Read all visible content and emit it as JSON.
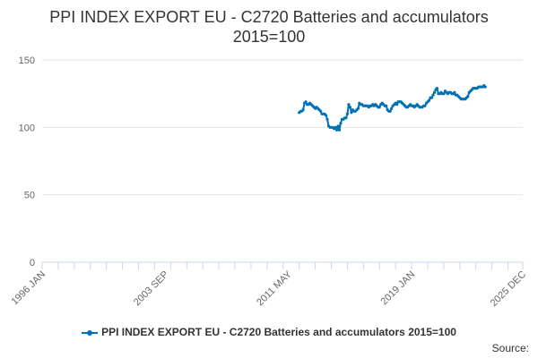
{
  "chart_data": {
    "type": "line",
    "title": "PPI INDEX EXPORT EU - C2720 Batteries and accumulators 2015=100",
    "title_lines": [
      "PPI INDEX EXPORT EU - C2720 Batteries and accumulators",
      "2015=100"
    ],
    "xlabel": "",
    "ylabel": "",
    "ylim": [
      0,
      150
    ],
    "yticks": [
      0,
      50,
      100,
      150
    ],
    "xlim": [
      "1996-01",
      "2025-12"
    ],
    "xticks": [
      "1996 JAN",
      "2003 SEP",
      "2011 MAY",
      "2019 JAN",
      "2025 DEC"
    ],
    "grid": true,
    "legend_position": "bottom",
    "series": [
      {
        "name": "PPI INDEX EXPORT EU - C2720 Batteries and accumulators 2015=100",
        "color": "#0071b5",
        "points": [
          [
            "2012-01",
            111
          ],
          [
            "2012-02",
            112
          ],
          [
            "2012-03",
            112
          ],
          [
            "2012-04",
            113
          ],
          [
            "2012-05",
            118
          ],
          [
            "2012-06",
            119
          ],
          [
            "2012-07",
            117
          ],
          [
            "2012-08",
            117
          ],
          [
            "2012-09",
            118
          ],
          [
            "2012-10",
            117
          ],
          [
            "2012-11",
            116
          ],
          [
            "2012-12",
            115
          ],
          [
            "2013-01",
            114
          ],
          [
            "2013-02",
            115
          ],
          [
            "2013-03",
            114
          ],
          [
            "2013-04",
            113
          ],
          [
            "2013-05",
            112
          ],
          [
            "2013-06",
            110
          ],
          [
            "2013-07",
            110
          ],
          [
            "2013-08",
            110
          ],
          [
            "2013-09",
            109
          ],
          [
            "2013-10",
            106
          ],
          [
            "2013-11",
            101
          ],
          [
            "2013-12",
            100
          ],
          [
            "2014-01",
            100
          ],
          [
            "2014-02",
            100
          ],
          [
            "2014-03",
            99
          ],
          [
            "2014-04",
            100
          ],
          [
            "2014-05",
            98
          ],
          [
            "2014-06",
            101
          ],
          [
            "2014-07",
            98
          ],
          [
            "2014-08",
            103
          ],
          [
            "2014-09",
            106
          ],
          [
            "2014-10",
            106
          ],
          [
            "2014-11",
            107
          ],
          [
            "2014-12",
            107
          ],
          [
            "2015-01",
            110
          ],
          [
            "2015-02",
            117
          ],
          [
            "2015-03",
            115
          ],
          [
            "2015-04",
            111
          ],
          [
            "2015-05",
            113
          ],
          [
            "2015-06",
            112
          ],
          [
            "2015-07",
            112
          ],
          [
            "2015-08",
            113
          ],
          [
            "2015-09",
            114
          ],
          [
            "2015-10",
            118
          ],
          [
            "2015-11",
            117
          ],
          [
            "2015-12",
            117
          ],
          [
            "2016-01",
            116
          ],
          [
            "2016-02",
            116
          ],
          [
            "2016-03",
            116
          ],
          [
            "2016-04",
            116
          ],
          [
            "2016-05",
            115
          ],
          [
            "2016-06",
            116
          ],
          [
            "2016-07",
            116
          ],
          [
            "2016-08",
            117
          ],
          [
            "2016-09",
            116
          ],
          [
            "2016-10",
            117
          ],
          [
            "2016-11",
            116
          ],
          [
            "2016-12",
            115
          ],
          [
            "2017-01",
            115
          ],
          [
            "2017-02",
            117
          ],
          [
            "2017-03",
            118
          ],
          [
            "2017-04",
            117
          ],
          [
            "2017-05",
            116
          ],
          [
            "2017-06",
            116
          ],
          [
            "2017-07",
            113
          ],
          [
            "2017-08",
            112
          ],
          [
            "2017-09",
            112
          ],
          [
            "2017-10",
            114
          ],
          [
            "2017-11",
            116
          ],
          [
            "2017-12",
            117
          ],
          [
            "2018-01",
            118
          ],
          [
            "2018-02",
            117
          ],
          [
            "2018-03",
            119
          ],
          [
            "2018-04",
            119
          ],
          [
            "2018-05",
            119
          ],
          [
            "2018-06",
            118
          ],
          [
            "2018-07",
            117
          ],
          [
            "2018-08",
            116
          ],
          [
            "2018-09",
            115
          ],
          [
            "2018-10",
            115
          ],
          [
            "2018-11",
            116
          ],
          [
            "2018-12",
            117
          ],
          [
            "2019-01",
            116
          ],
          [
            "2019-02",
            116
          ],
          [
            "2019-03",
            115
          ],
          [
            "2019-04",
            116
          ],
          [
            "2019-05",
            117
          ],
          [
            "2019-06",
            116
          ],
          [
            "2019-07",
            115
          ],
          [
            "2019-08",
            115
          ],
          [
            "2019-09",
            115
          ],
          [
            "2019-10",
            116
          ],
          [
            "2019-11",
            116
          ],
          [
            "2019-12",
            118
          ],
          [
            "2020-01",
            119
          ],
          [
            "2020-02",
            120
          ],
          [
            "2020-03",
            122
          ],
          [
            "2020-04",
            122
          ],
          [
            "2020-05",
            124
          ],
          [
            "2020-06",
            126
          ],
          [
            "2020-07",
            128
          ],
          [
            "2020-08",
            129
          ],
          [
            "2020-09",
            125
          ],
          [
            "2020-10",
            125
          ],
          [
            "2020-11",
            126
          ],
          [
            "2020-12",
            125
          ],
          [
            "2021-01",
            125
          ],
          [
            "2021-02",
            127
          ],
          [
            "2021-03",
            126
          ],
          [
            "2021-04",
            125
          ],
          [
            "2021-05",
            126
          ],
          [
            "2021-06",
            126
          ],
          [
            "2021-07",
            125
          ],
          [
            "2021-08",
            125
          ],
          [
            "2021-09",
            126
          ],
          [
            "2021-10",
            124
          ],
          [
            "2021-11",
            124
          ],
          [
            "2021-12",
            123
          ],
          [
            "2022-01",
            122
          ],
          [
            "2022-02",
            121
          ],
          [
            "2022-03",
            121
          ],
          [
            "2022-04",
            121
          ],
          [
            "2022-05",
            121
          ],
          [
            "2022-06",
            122
          ],
          [
            "2022-07",
            123
          ],
          [
            "2022-08",
            126
          ],
          [
            "2022-09",
            127
          ],
          [
            "2022-10",
            128
          ],
          [
            "2022-11",
            129
          ],
          [
            "2022-12",
            129
          ],
          [
            "2023-01",
            129
          ],
          [
            "2023-02",
            129
          ],
          [
            "2023-03",
            130
          ],
          [
            "2023-04",
            130
          ],
          [
            "2023-05",
            130
          ],
          [
            "2023-06",
            130
          ],
          [
            "2023-07",
            131
          ],
          [
            "2023-08",
            130
          ]
        ]
      }
    ]
  },
  "legend": {
    "label": "PPI INDEX EXPORT EU - C2720 Batteries and accumulators 2015=100"
  },
  "source": {
    "label": "Source:"
  }
}
